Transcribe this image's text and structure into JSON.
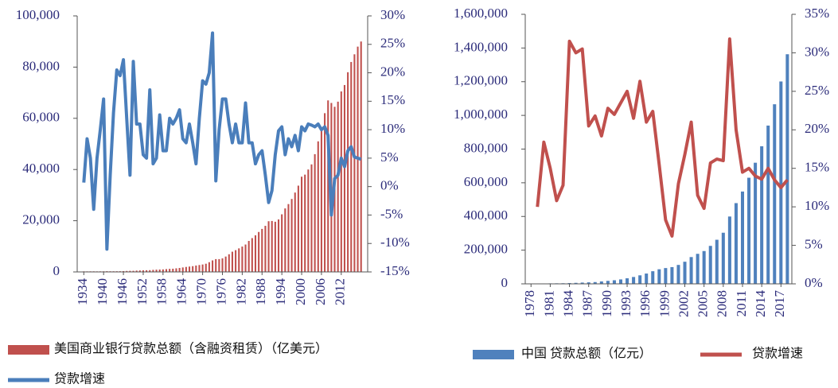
{
  "chart_data": [
    {
      "type": "bar-line",
      "x": [
        1934,
        1935,
        1936,
        1937,
        1938,
        1939,
        1940,
        1941,
        1942,
        1943,
        1944,
        1945,
        1946,
        1947,
        1948,
        1949,
        1950,
        1951,
        1952,
        1953,
        1954,
        1955,
        1956,
        1957,
        1958,
        1959,
        1960,
        1961,
        1962,
        1963,
        1964,
        1965,
        1966,
        1967,
        1968,
        1969,
        1970,
        1971,
        1972,
        1973,
        1974,
        1975,
        1976,
        1977,
        1978,
        1979,
        1980,
        1981,
        1982,
        1983,
        1984,
        1985,
        1986,
        1987,
        1988,
        1989,
        1990,
        1991,
        1992,
        1993,
        1994,
        1995,
        1996,
        1997,
        1998,
        1999,
        2000,
        2001,
        2002,
        2003,
        2004,
        2005,
        2006,
        2007,
        2008,
        2009,
        2010,
        2011,
        2012,
        2013,
        2014,
        2015,
        2016,
        2017,
        2018
      ],
      "xlim": [
        1932,
        2020
      ],
      "xticks": [
        1934,
        1940,
        1946,
        1952,
        1958,
        1964,
        1970,
        1976,
        1982,
        1988,
        1994,
        2000,
        2006,
        2012
      ],
      "ylim": [
        0,
        100000
      ],
      "yticks": [
        0,
        {
          "value": 20000,
          "label": "20,000"
        },
        {
          "value": 40000,
          "label": "40,000"
        },
        {
          "value": 60000,
          "label": "60,000"
        },
        {
          "value": 80000,
          "label": "80,000"
        },
        {
          "value": 100000,
          "label": "100,000"
        }
      ],
      "y2lim": [
        -15,
        30
      ],
      "y2ticks": [
        {
          "value": -15,
          "label": "-15%"
        },
        {
          "value": -10,
          "label": "-10%"
        },
        {
          "value": -5,
          "label": "-5%"
        },
        {
          "value": 0,
          "label": "0%"
        },
        {
          "value": 5,
          "label": "5%"
        },
        {
          "value": 10,
          "label": "10%"
        },
        {
          "value": 15,
          "label": "15%"
        },
        {
          "value": 20,
          "label": "20%"
        },
        {
          "value": 25,
          "label": "25%"
        },
        {
          "value": 30,
          "label": "30%"
        }
      ],
      "series": [
        {
          "name": "美国商业银行贷款总额（含融资租赁）（亿美元）",
          "type": "bar",
          "color": "#c0504d",
          "values": [
            220,
            210,
            220,
            230,
            210,
            220,
            240,
            280,
            250,
            250,
            260,
            270,
            320,
            380,
            420,
            430,
            520,
            570,
            620,
            660,
            690,
            800,
            880,
            930,
            980,
            1100,
            1200,
            1250,
            1400,
            1550,
            1750,
            1950,
            2100,
            2250,
            2500,
            2700,
            2900,
            3200,
            3800,
            4500,
            5000,
            5000,
            5300,
            6000,
            6900,
            7900,
            8500,
            9200,
            9900,
            10700,
            12100,
            13200,
            14300,
            15600,
            16800,
            18000,
            19800,
            19900,
            19600,
            20500,
            22500,
            24800,
            26500,
            28500,
            31000,
            33700,
            37200,
            38000,
            40000,
            42000,
            46000,
            51000,
            56000,
            62000,
            67000,
            66000,
            64500,
            66500,
            70500,
            73000,
            78000,
            82000,
            85000,
            88000,
            90000
          ]
        },
        {
          "name": "贷款增速",
          "type": "line",
          "axis": "y2",
          "color": "#4a7ebb",
          "values": [
            0.7,
            8.4,
            5,
            -4,
            5,
            10,
            15.4,
            -11,
            2,
            13,
            20.5,
            19.5,
            22.3,
            12,
            2,
            22,
            11,
            11,
            5.6,
            5,
            17,
            4,
            5,
            12.6,
            6.3,
            6.3,
            12,
            11,
            12,
            13.5,
            8.4,
            7.7,
            11,
            7.7,
            4,
            12,
            18.6,
            18,
            20,
            27,
            1,
            10,
            15.4,
            15.4,
            11,
            7.7,
            11,
            7.7,
            7.7,
            14.7,
            7.7,
            7.7,
            4,
            5.6,
            6.3,
            2,
            -2.8,
            -0.7,
            5.6,
            9.8,
            10.5,
            5.6,
            8.4,
            7,
            9,
            6.3,
            10.5,
            9.8,
            11,
            10.8,
            10.5,
            11,
            10,
            10.5,
            9,
            -5,
            1.4,
            2,
            5,
            3.5,
            6.3,
            7,
            5.2,
            5,
            4.8
          ]
        }
      ]
    },
    {
      "type": "bar-line",
      "x": [
        1978,
        1979,
        1980,
        1981,
        1982,
        1983,
        1984,
        1985,
        1986,
        1987,
        1988,
        1989,
        1990,
        1991,
        1992,
        1993,
        1994,
        1995,
        1996,
        1997,
        1998,
        1999,
        2000,
        2001,
        2002,
        2003,
        2004,
        2005,
        2006,
        2007,
        2008,
        2009,
        2010,
        2011,
        2012,
        2013,
        2014,
        2015,
        2016,
        2017,
        2018
      ],
      "xlim": [
        1977.1,
        2018.7
      ],
      "xticks": [
        1978,
        1981,
        1984,
        1987,
        1990,
        1993,
        1996,
        1999,
        2002,
        2005,
        2008,
        2011,
        2014,
        2017
      ],
      "ylim": [
        0,
        1600000
      ],
      "yticks": [
        0,
        {
          "value": 200000,
          "label": "200,000"
        },
        {
          "value": 400000,
          "label": "400,000"
        },
        {
          "value": 600000,
          "label": "600,000"
        },
        {
          "value": 800000,
          "label": "800,000"
        },
        {
          "value": 1000000,
          "label": "1,000,000"
        },
        {
          "value": 1200000,
          "label": "1,200,000"
        },
        {
          "value": 1400000,
          "label": "1,400,000"
        },
        {
          "value": 1600000,
          "label": "1,600,000"
        }
      ],
      "y2lim": [
        0,
        35
      ],
      "y2ticks": [
        {
          "value": 0,
          "label": "0%"
        },
        {
          "value": 5,
          "label": "5%"
        },
        {
          "value": 10,
          "label": "10%"
        },
        {
          "value": 15,
          "label": "15%"
        },
        {
          "value": 20,
          "label": "20%"
        },
        {
          "value": 25,
          "label": "25%"
        },
        {
          "value": 30,
          "label": "30%"
        },
        {
          "value": 35,
          "label": "35%"
        }
      ],
      "series": [
        {
          "name": "中国 贷款总额（亿元）",
          "type": "bar",
          "color": "#4f81bd",
          "values": [
            1850,
            2040,
            2410,
            2860,
            3180,
            3590,
            4770,
            5910,
            7590,
            9030,
            10550,
            14360,
            17680,
            21340,
            26320,
            32940,
            40810,
            50540,
            61150,
            74910,
            86520,
            93730,
            99370,
            112310,
            131290,
            158996,
            178198,
            194690,
            225347,
            261691,
            303395,
            399685,
            479196,
            547947,
            629910,
            718961,
            816770,
            939540,
            1066040,
            1201321,
            1362967
          ]
        },
        {
          "name": "贷款增速",
          "type": "line",
          "axis": "y2",
          "color": "#c0504d",
          "values": [
            null,
            10,
            18.4,
            15,
            10.8,
            12.8,
            31.5,
            30,
            30.5,
            20.5,
            21.8,
            19.2,
            22.8,
            22,
            23.5,
            25,
            21.5,
            26.3,
            21,
            22.4,
            15.5,
            8.3,
            6.2,
            13,
            16.8,
            21,
            11.5,
            9.8,
            15.7,
            16.2,
            16,
            31.8,
            20,
            14.5,
            15,
            14,
            13.6,
            15,
            13.5,
            12.5,
            13.5
          ]
        }
      ]
    }
  ]
}
